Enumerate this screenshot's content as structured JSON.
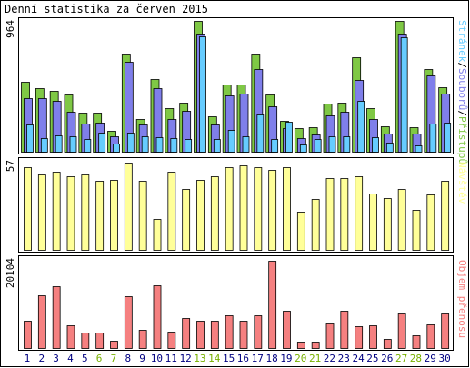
{
  "title": "Denní statistika za červen 2015",
  "colors": {
    "hits": "#7fc845",
    "files": "#7f7fea",
    "pages": "#66ccff",
    "visits": "#ffff99",
    "kbytes": "#f58080",
    "day_normal": "#000080",
    "day_weekend": "#78b000"
  },
  "chart_data": [
    {
      "type": "bar",
      "title": "",
      "categories": [
        "1",
        "2",
        "3",
        "4",
        "5",
        "6",
        "7",
        "8",
        "9",
        "10",
        "11",
        "12",
        "13",
        "14",
        "15",
        "16",
        "17",
        "18",
        "19",
        "20",
        "21",
        "22",
        "23",
        "24",
        "25",
        "26",
        "27",
        "28",
        "29",
        "30"
      ],
      "weekend_days": [
        "6",
        "7",
        "13",
        "14",
        "20",
        "21",
        "27",
        "28"
      ],
      "ylim": [
        0,
        964
      ],
      "max_label": "964",
      "series": [
        {
          "name": "Přístupů",
          "color_key": "hits",
          "values": [
            510,
            465,
            445,
            418,
            285,
            285,
            150,
            715,
            240,
            525,
            315,
            355,
            950,
            260,
            490,
            490,
            710,
            415,
            225,
            170,
            175,
            348,
            355,
            688,
            315,
            183,
            950,
            180,
            600,
            470
          ]
        },
        {
          "name": "Souborů",
          "color_key": "files",
          "values": [
            390,
            390,
            368,
            290,
            205,
            210,
            110,
            655,
            195,
            460,
            240,
            295,
            860,
            195,
            410,
            420,
            600,
            330,
            170,
            100,
            125,
            265,
            290,
            520,
            240,
            130,
            860,
            130,
            555,
            420
          ]
        },
        {
          "name": "Stránek",
          "color_key": "pages",
          "values": [
            195,
            100,
            120,
            115,
            90,
            140,
            60,
            140,
            110,
            105,
            100,
            90,
            840,
            90,
            160,
            115,
            270,
            95,
            215,
            50,
            95,
            115,
            115,
            370,
            105,
            65,
            830,
            45,
            205,
            210
          ]
        }
      ]
    },
    {
      "type": "bar",
      "title": "",
      "categories": [
        "1",
        "2",
        "3",
        "4",
        "5",
        "6",
        "7",
        "8",
        "9",
        "10",
        "11",
        "12",
        "13",
        "14",
        "15",
        "16",
        "17",
        "18",
        "19",
        "20",
        "21",
        "22",
        "23",
        "24",
        "25",
        "26",
        "27",
        "28",
        "29",
        "30"
      ],
      "ylim": [
        0,
        57
      ],
      "max_label": "57",
      "series": [
        {
          "name": "Návštěv",
          "color_key": "visits",
          "values": [
            54,
            49,
            51,
            48,
            49,
            45,
            46,
            57,
            45,
            20,
            51,
            40,
            46,
            48,
            54,
            55,
            54,
            52,
            54,
            25,
            33,
            47,
            47,
            48,
            37,
            34,
            40,
            26,
            36,
            45
          ]
        }
      ]
    },
    {
      "type": "bar",
      "title": "",
      "categories": [
        "1",
        "2",
        "3",
        "4",
        "5",
        "6",
        "7",
        "8",
        "9",
        "10",
        "11",
        "12",
        "13",
        "14",
        "15",
        "16",
        "17",
        "18",
        "19",
        "20",
        "21",
        "22",
        "23",
        "24",
        "25",
        "26",
        "27",
        "28",
        "29",
        "30"
      ],
      "ylim": [
        0,
        20104
      ],
      "max_label": "20104",
      "series": [
        {
          "name": "Objem přenosu",
          "color_key": "kbytes",
          "values": [
            6200,
            12200,
            14200,
            5200,
            3600,
            3600,
            1600,
            11900,
            4200,
            14400,
            3800,
            6900,
            6300,
            6300,
            7600,
            6300,
            7500,
            20104,
            8500,
            1400,
            1400,
            5700,
            8500,
            5000,
            5200,
            2100,
            8000,
            3000,
            5500,
            8000
          ]
        }
      ]
    }
  ]
}
